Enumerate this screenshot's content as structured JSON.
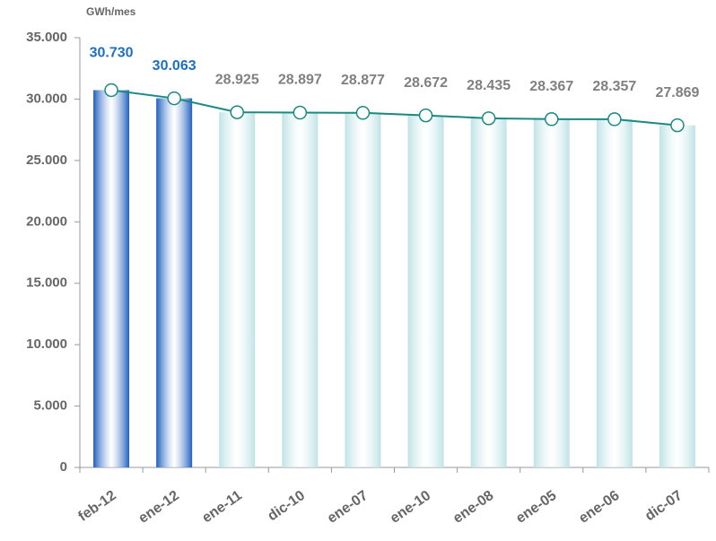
{
  "chart_data": {
    "type": "bar",
    "y_label": "GWh/mes",
    "categories": [
      "feb-12",
      "ene-12",
      "ene-11",
      "dic-10",
      "ene-07",
      "ene-10",
      "ene-08",
      "ene-05",
      "ene-06",
      "dic-07"
    ],
    "values": [
      30730,
      30063,
      28925,
      28897,
      28877,
      28672,
      28435,
      28367,
      28357,
      27869
    ],
    "value_labels": [
      "30.730",
      "30.063",
      "28.925",
      "28.897",
      "28.877",
      "28.672",
      "28.435",
      "28.367",
      "28.357",
      "27.869"
    ],
    "colors": [
      "#1f5fbf",
      "#1f5fbf",
      "#bfe3e6",
      "#bfe3e6",
      "#bfe3e6",
      "#bfe3e6",
      "#bfe3e6",
      "#bfe3e6",
      "#bfe3e6",
      "#bfe3e6"
    ],
    "value_label_colors": [
      "#1f6fc0",
      "#1f6fc0",
      "#808080",
      "#808080",
      "#808080",
      "#808080",
      "#808080",
      "#808080",
      "#808080",
      "#808080"
    ],
    "line_color": "#1a8a80",
    "ylim": [
      0,
      35000
    ],
    "yticks": [
      {
        "value": 0,
        "label": "0"
      },
      {
        "value": 5000,
        "label": "5.000"
      },
      {
        "value": 10000,
        "label": "10.000"
      },
      {
        "value": 15000,
        "label": "15.000"
      },
      {
        "value": 20000,
        "label": "20.000"
      },
      {
        "value": 25000,
        "label": "25.000"
      },
      {
        "value": 30000,
        "label": "30.000"
      },
      {
        "value": 35000,
        "label": "35.000"
      }
    ]
  }
}
